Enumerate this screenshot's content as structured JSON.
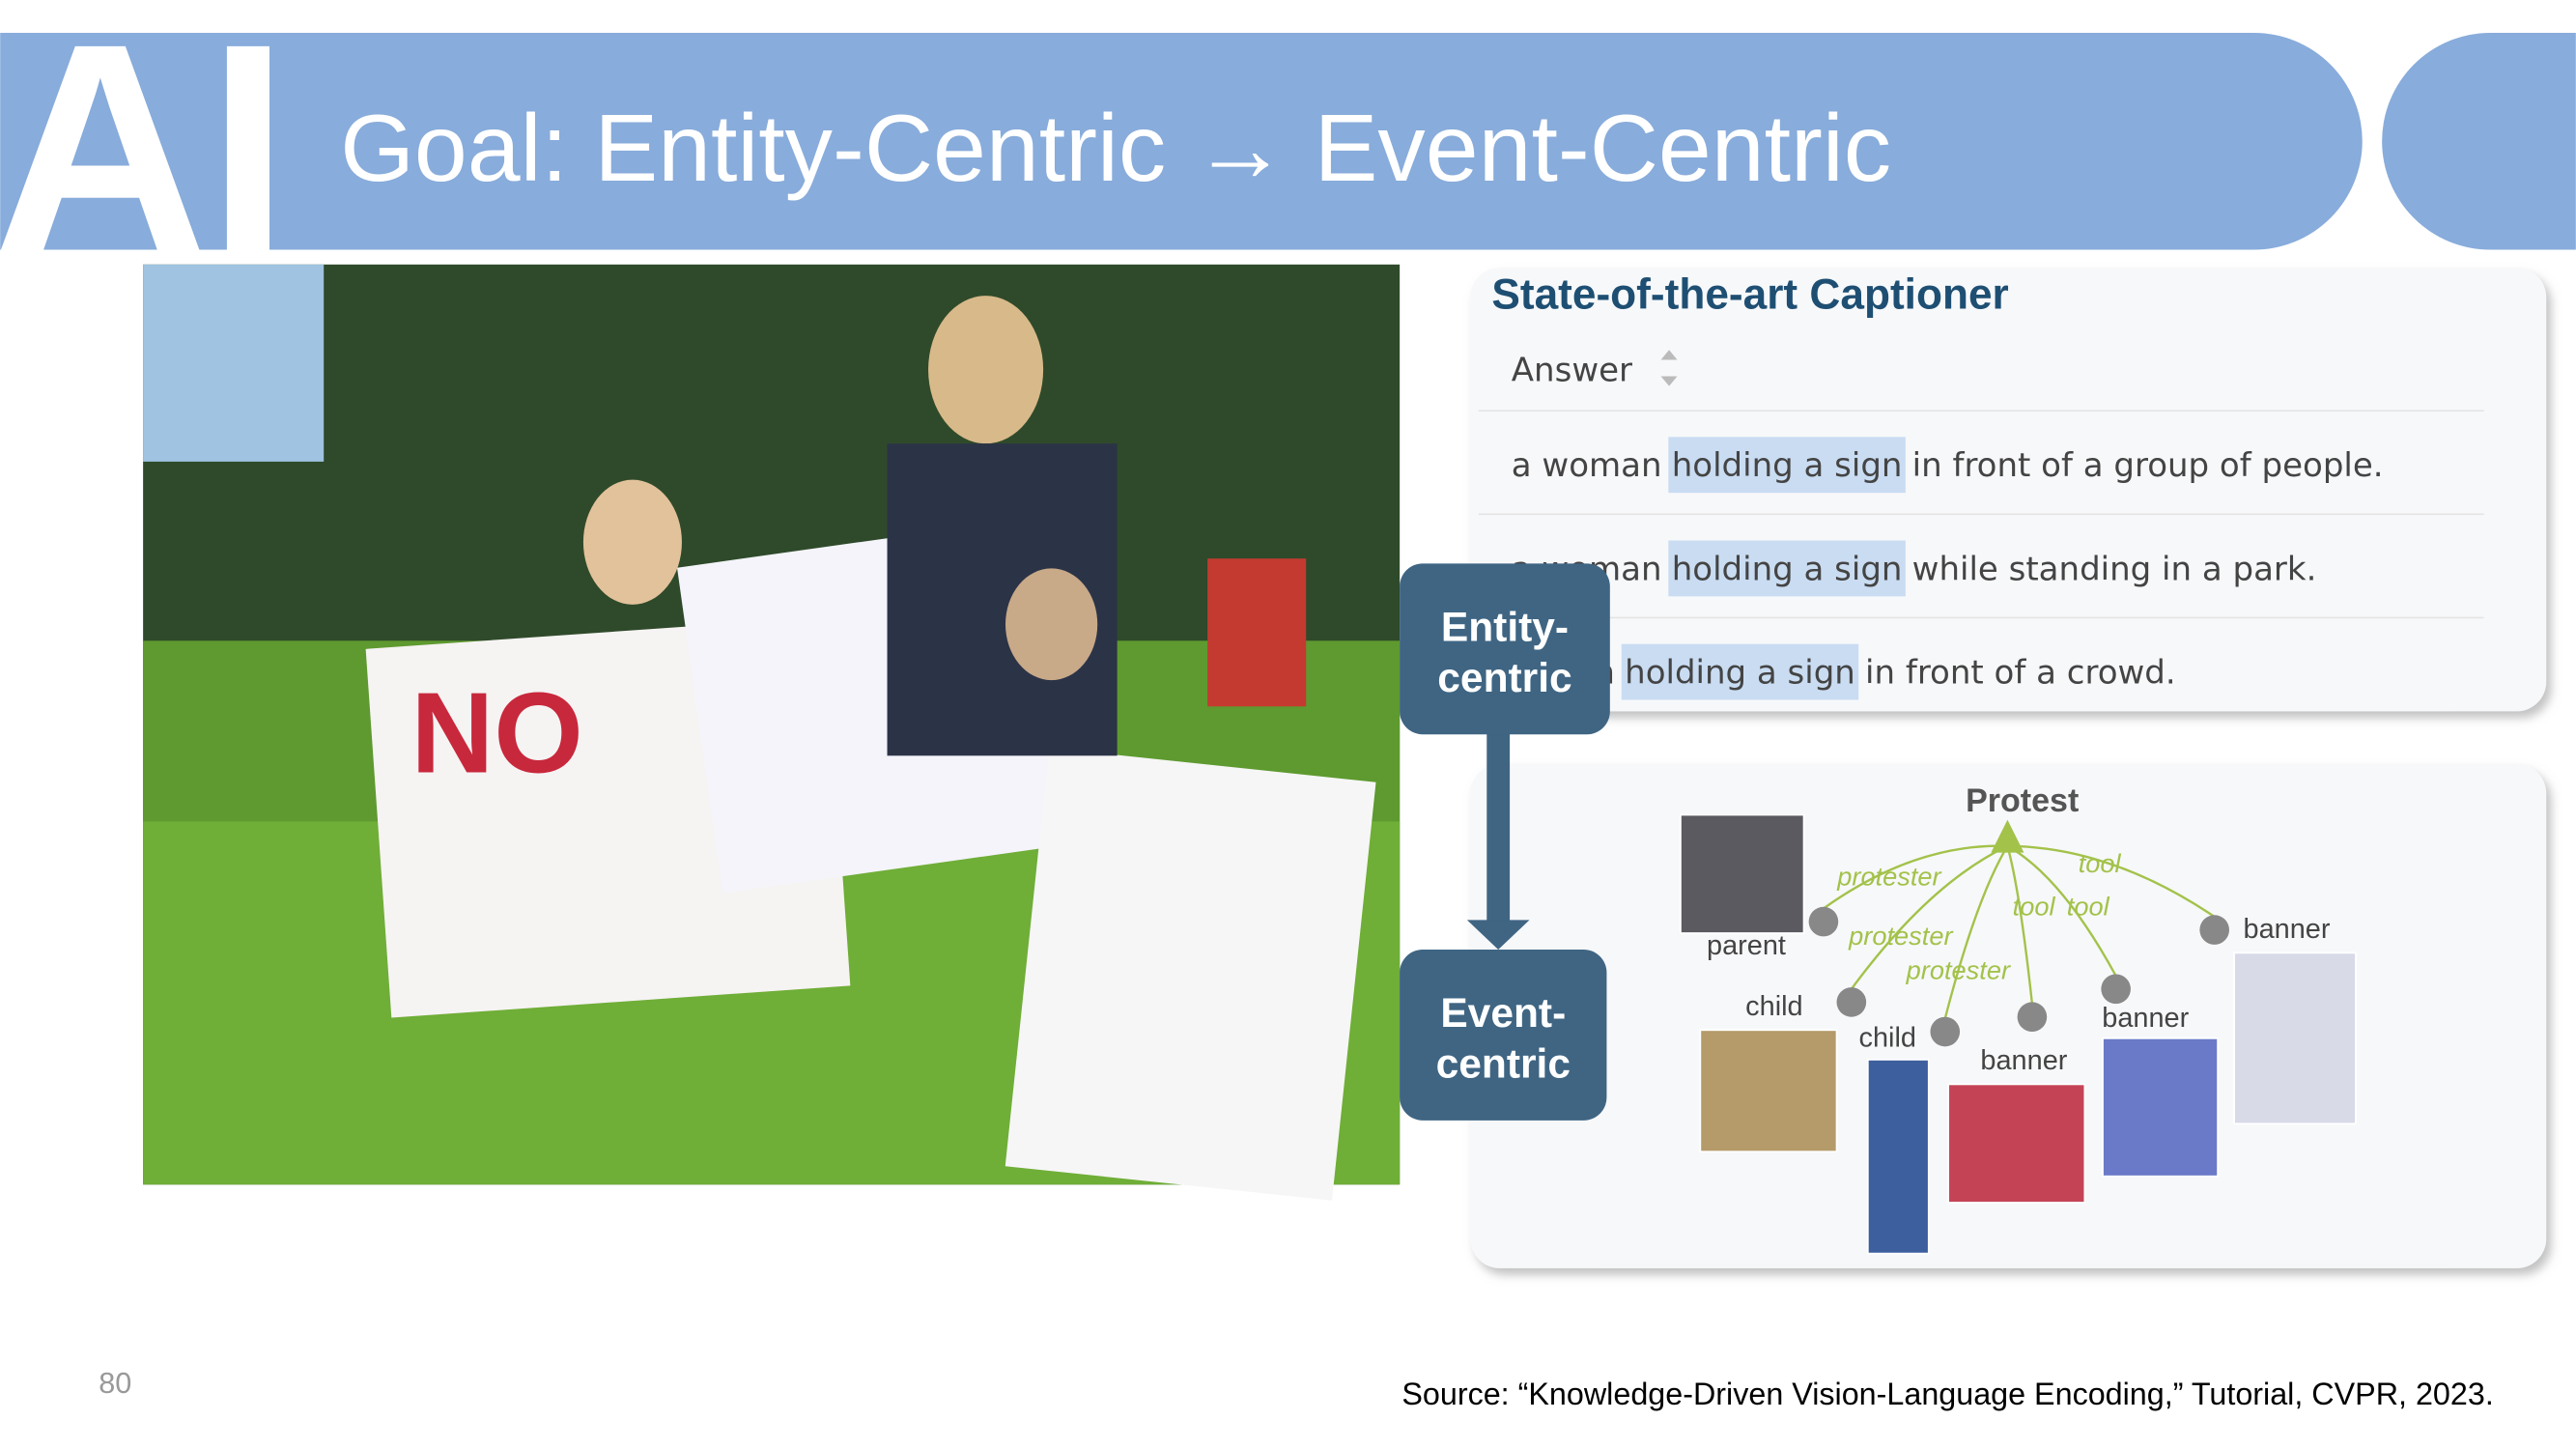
{
  "header": {
    "logo": "AI",
    "title": "Goal: Entity-Centric → Event-Centric"
  },
  "captioner": {
    "title": "State-of-the-art Captioner",
    "column": "Answer",
    "rows": [
      {
        "prefix": "a woman",
        "highlight": "holding a sign",
        "suffix": "in front of a group of people."
      },
      {
        "prefix": "a woman",
        "highlight": "holding a sign",
        "suffix": "while standing in a park."
      },
      {
        "prefix": "a man",
        "highlight": "holding a sign",
        "suffix": "in front of a crowd."
      }
    ]
  },
  "stages": {
    "entity": [
      "Entity-",
      "centric"
    ],
    "event": [
      "Event-",
      "centric"
    ]
  },
  "graph": {
    "root": "Protest",
    "nodes": [
      {
        "label": "parent",
        "edge": "protester"
      },
      {
        "label": "child",
        "edge": "protester"
      },
      {
        "label": "child",
        "edge": "protester"
      },
      {
        "label": "banner",
        "edge": "tool"
      },
      {
        "label": "banner",
        "edge": "tool"
      },
      {
        "label": "banner",
        "edge": "tool"
      }
    ]
  },
  "footer": {
    "page": "80",
    "source": "Source: “Knowledge-Driven Vision-Language Encoding,” Tutorial, CVPR, 2023."
  }
}
